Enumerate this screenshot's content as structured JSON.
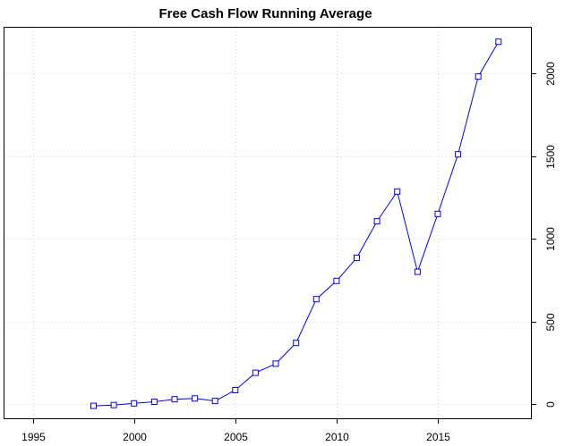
{
  "chart_data": {
    "type": "line",
    "title": "Free Cash Flow Running Average",
    "xlabel": "",
    "ylabel": "",
    "xlim": [
      1993.6,
      2019.6
    ],
    "ylim": [
      -85,
      2275
    ],
    "x_ticks": [
      1995,
      2000,
      2005,
      2010,
      2015
    ],
    "y_ticks": [
      0,
      500,
      1000,
      1500,
      2000
    ],
    "y_axis_side": "right",
    "grid": true,
    "legend": "none",
    "colors": {
      "line": "#0000ff",
      "marker": "#0000ff",
      "grid": "#d3d3d3",
      "axis": "#000000"
    },
    "marker": "open-square",
    "series": [
      {
        "x": [
          1998,
          1999,
          2000,
          2001,
          2002,
          2003,
          2004,
          2005,
          2006,
          2007,
          2008,
          2009,
          2010,
          2011,
          2012,
          2013,
          2014,
          2015,
          2016,
          2017,
          2018
        ],
        "values": [
          -10,
          -5,
          5,
          15,
          30,
          35,
          20,
          85,
          190,
          245,
          370,
          635,
          745,
          885,
          1105,
          1285,
          800,
          1150,
          1510,
          1980,
          2190
        ]
      }
    ]
  }
}
